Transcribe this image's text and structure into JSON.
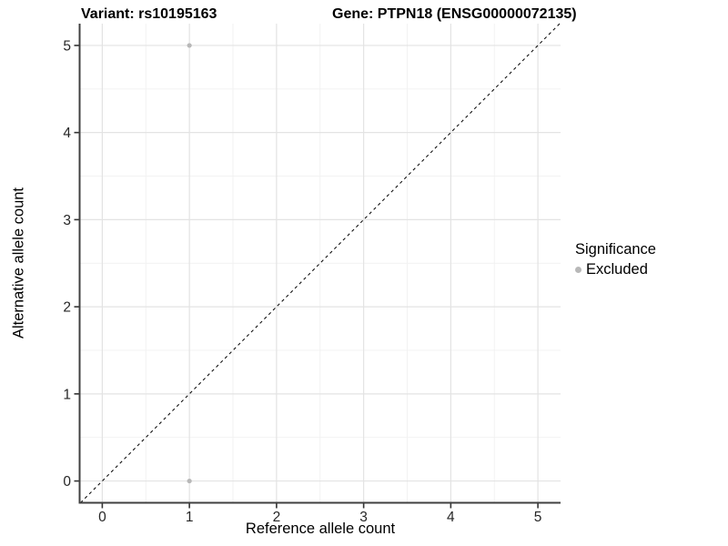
{
  "figure": {
    "title_left": "Variant: rs10195163",
    "title_right": "Gene: PTPN18 (ENSG00000072135)",
    "xlabel": "Reference allele count",
    "ylabel": "Alternative allele count"
  },
  "legend": {
    "title": "Significance",
    "items": [
      {
        "label": "Excluded",
        "color": "#b8b8b8"
      }
    ]
  },
  "chart_data": {
    "type": "scatter",
    "title_left": "Variant: rs10195163",
    "title_right": "Gene: PTPN18 (ENSG00000072135)",
    "xlabel": "Reference allele count",
    "ylabel": "Alternative allele count",
    "xlim": [
      -0.26,
      5.26
    ],
    "ylim": [
      -0.25,
      5.25
    ],
    "xticks": [
      0,
      1,
      2,
      3,
      4,
      5
    ],
    "yticks": [
      0,
      1,
      2,
      3,
      4,
      5
    ],
    "minor_xticks": [
      0.5,
      1.5,
      2.5,
      3.5,
      4.5
    ],
    "minor_yticks": [
      0.5,
      1.5,
      2.5,
      3.5,
      4.5
    ],
    "grid": true,
    "legend_position": "right",
    "series": [
      {
        "name": "Excluded",
        "color": "#b8b8b8",
        "points": [
          {
            "x": 1,
            "y": 5
          },
          {
            "x": 1,
            "y": 0
          }
        ]
      }
    ],
    "reference_line": {
      "kind": "identity",
      "equation": "y = x",
      "style": "dashed",
      "color": "#111111"
    }
  },
  "style": {
    "panel_bg": "#ffffff",
    "grid_major_color": "#e3e3e3",
    "grid_minor_color": "#f1f1f1",
    "axis_line_color": "#404040",
    "tick_mark_color": "#333333",
    "tick_label_color": "#262626",
    "point_radius": 2.6
  }
}
